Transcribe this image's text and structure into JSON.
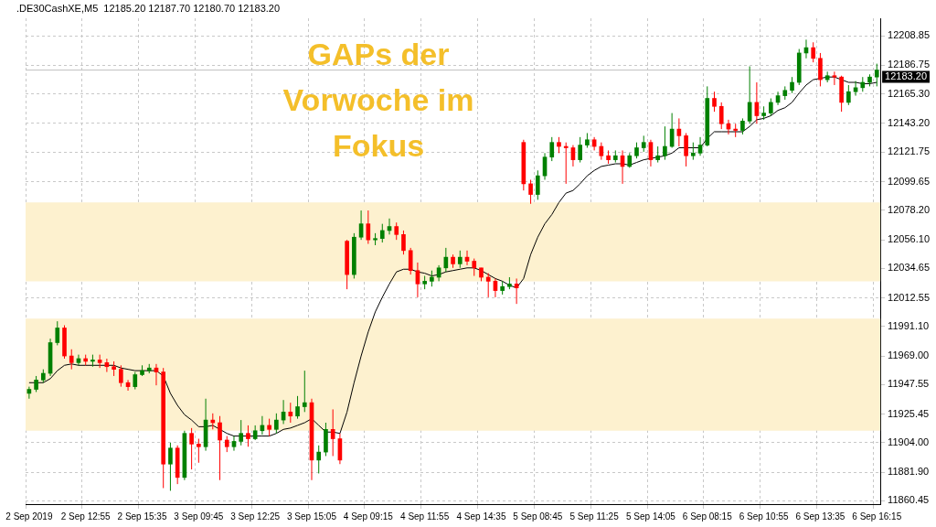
{
  "chart_data": {
    "type": "candlestick",
    "title": "GAPs der Vorwoche im Fokus",
    "subtitle": ".DE30CashXE,M5  12185.20 12187.70 12180.70 12183.20",
    "categories": [
      "2 Sep 2019",
      null,
      null,
      null,
      null,
      null,
      null,
      null,
      "2 Sep 12:55",
      null,
      null,
      null,
      null,
      null,
      null,
      null,
      "2 Sep 15:35",
      null,
      null,
      null,
      null,
      null,
      null,
      null,
      "3 Sep 09:45",
      null,
      null,
      null,
      null,
      null,
      null,
      null,
      "3 Sep 12:25",
      null,
      null,
      null,
      null,
      null,
      null,
      null,
      "3 Sep 15:05",
      null,
      null,
      null,
      null,
      null,
      null,
      null,
      "4 Sep 09:15",
      null,
      null,
      null,
      null,
      null,
      null,
      null,
      "4 Sep 11:55",
      null,
      null,
      null,
      null,
      null,
      null,
      null,
      "4 Sep 14:35",
      null,
      null,
      null,
      null,
      null,
      null,
      null,
      "5 Sep 08:45",
      null,
      null,
      null,
      null,
      null,
      null,
      null,
      "5 Sep 11:25",
      null,
      null,
      null,
      null,
      null,
      null,
      null,
      "5 Sep 14:05",
      null,
      null,
      null,
      null,
      null,
      null,
      null,
      "6 Sep 08:15",
      null,
      null,
      null,
      null,
      null,
      null,
      null,
      "6 Sep 10:55",
      null,
      null,
      null,
      null,
      null,
      null,
      null,
      "6 Sep 13:35",
      null,
      null,
      null,
      null,
      null,
      null,
      null,
      "6 Sep 16:15"
    ],
    "ohlc": [
      [
        11941,
        11946,
        11937,
        11944
      ],
      [
        11944,
        11954,
        11942,
        11951
      ],
      [
        11951,
        11959,
        11949,
        11956
      ],
      [
        11956,
        11982,
        11954,
        11979
      ],
      [
        11979,
        11995,
        11977,
        11990
      ],
      [
        11990,
        11992,
        11967,
        11969
      ],
      [
        11969,
        11974,
        11959,
        11964
      ],
      [
        11964,
        11970,
        11962,
        11967
      ],
      [
        11967,
        11970,
        11962,
        11965
      ],
      [
        11965,
        11970,
        11961,
        11966
      ],
      [
        11966,
        11970,
        11960,
        11964
      ],
      [
        11964,
        11967,
        11957,
        11961
      ],
      [
        11961,
        11965,
        11954,
        11959
      ],
      [
        11959,
        11962,
        11946,
        11949
      ],
      [
        11949,
        11951,
        11943,
        11946
      ],
      [
        11946,
        11957,
        11944,
        11955
      ],
      [
        11955,
        11962,
        11954,
        11958
      ],
      [
        11958,
        11963,
        11956,
        11960
      ],
      [
        11960,
        11963,
        11947,
        11957
      ],
      [
        11957,
        11960,
        11870,
        11888
      ],
      [
        11888,
        11904,
        11868,
        11900
      ],
      [
        11900,
        11902,
        11873,
        11878
      ],
      [
        11878,
        11913,
        11876,
        11911
      ],
      [
        11911,
        11915,
        11884,
        11903
      ],
      [
        11903,
        11907,
        11889,
        11901
      ],
      [
        11901,
        11937,
        11898,
        11921
      ],
      [
        11921,
        11926,
        11914,
        11919
      ],
      [
        11919,
        11924,
        11876,
        11906
      ],
      [
        11906,
        11909,
        11897,
        11901
      ],
      [
        11901,
        11909,
        11898,
        11905
      ],
      [
        11905,
        11921,
        11902,
        11911
      ],
      [
        11911,
        11917,
        11901,
        11907
      ],
      [
        11907,
        11917,
        11906,
        11913
      ],
      [
        11913,
        11924,
        11910,
        11917
      ],
      [
        11917,
        11922,
        11909,
        11914
      ],
      [
        11914,
        11926,
        11911,
        11921
      ],
      [
        11921,
        11936,
        11918,
        11927
      ],
      [
        11927,
        11934,
        11919,
        11924
      ],
      [
        11924,
        11939,
        11922,
        11931
      ],
      [
        11931,
        11958,
        11927,
        11934
      ],
      [
        11934,
        11937,
        11876,
        11891
      ],
      [
        11891,
        11902,
        11881,
        11897
      ],
      [
        11897,
        11919,
        11894,
        11914
      ],
      [
        11914,
        11929,
        11894,
        11907
      ],
      [
        11907,
        11911,
        11888,
        11891
      ],
      [
        12055,
        12056,
        12019,
        12030
      ],
      [
        12030,
        12061,
        12027,
        12058
      ],
      [
        12058,
        12078,
        12056,
        12068
      ],
      [
        12068,
        12078,
        12053,
        12056
      ],
      [
        12056,
        12061,
        12052,
        12057
      ],
      [
        12057,
        12068,
        12054,
        12063
      ],
      [
        12063,
        12072,
        12060,
        12066
      ],
      [
        12066,
        12069,
        12056,
        12060
      ],
      [
        12060,
        12063,
        12045,
        12048
      ],
      [
        12048,
        12050,
        12030,
        12033
      ],
      [
        12033,
        12039,
        12013,
        12023
      ],
      [
        12023,
        12029,
        12019,
        12025
      ],
      [
        12025,
        12033,
        12021,
        12028
      ],
      [
        12028,
        12037,
        12025,
        12035
      ],
      [
        12035,
        12050,
        12032,
        12043
      ],
      [
        12043,
        12045,
        12035,
        12038
      ],
      [
        12038,
        12048,
        12035,
        12043
      ],
      [
        12043,
        12048,
        12037,
        12040
      ],
      [
        12040,
        12042,
        12029,
        12035
      ],
      [
        12035,
        12035,
        12025,
        12028
      ],
      [
        12028,
        12031,
        12013,
        12025
      ],
      [
        12025,
        12027,
        12013,
        12018
      ],
      [
        12018,
        12025,
        12015,
        12021
      ],
      [
        12021,
        12028,
        12019,
        12023
      ],
      [
        12023,
        12027,
        12008,
        12020
      ],
      [
        12129,
        12131,
        12093,
        12098
      ],
      [
        12098,
        12101,
        12083,
        12090
      ],
      [
        12090,
        12108,
        12086,
        12104
      ],
      [
        12104,
        12121,
        12101,
        12118
      ],
      [
        12118,
        12133,
        12115,
        12129
      ],
      [
        12129,
        12133,
        12121,
        12126
      ],
      [
        12126,
        12129,
        12098,
        12125
      ],
      [
        12125,
        12127,
        12111,
        12116
      ],
      [
        12116,
        12133,
        12114,
        12127
      ],
      [
        12127,
        12136,
        12125,
        12131
      ],
      [
        12131,
        12133,
        12123,
        12126
      ],
      [
        12126,
        12129,
        12116,
        12119
      ],
      [
        12119,
        12123,
        12113,
        12116
      ],
      [
        12116,
        12123,
        12114,
        12119
      ],
      [
        12119,
        12123,
        12098,
        12111
      ],
      [
        12111,
        12121,
        12110,
        12119
      ],
      [
        12119,
        12129,
        12117,
        12125
      ],
      [
        12125,
        12134,
        12122,
        12129
      ],
      [
        12129,
        12131,
        12111,
        12116
      ],
      [
        12116,
        12126,
        12114,
        12119
      ],
      [
        12119,
        12141,
        12116,
        12126
      ],
      [
        12126,
        12151,
        12125,
        12139
      ],
      [
        12139,
        12147,
        12126,
        12134
      ],
      [
        12134,
        12136,
        12111,
        12119
      ],
      [
        12119,
        12129,
        12116,
        12121
      ],
      [
        12121,
        12133,
        12119,
        12127
      ],
      [
        12127,
        12171,
        12126,
        12162
      ],
      [
        12162,
        12167,
        12152,
        12156
      ],
      [
        12156,
        12159,
        12139,
        12143
      ],
      [
        12143,
        12146,
        12135,
        12139
      ],
      [
        12139,
        12143,
        12133,
        12138
      ],
      [
        12138,
        12147,
        12135,
        12145
      ],
      [
        12145,
        12186,
        12143,
        12159
      ],
      [
        12159,
        12174,
        12143,
        12149
      ],
      [
        12149,
        12156,
        12146,
        12151
      ],
      [
        12151,
        12162,
        12149,
        12159
      ],
      [
        12159,
        12167,
        12157,
        12164
      ],
      [
        12164,
        12171,
        12161,
        12168
      ],
      [
        12168,
        12178,
        12166,
        12174
      ],
      [
        12174,
        12199,
        12172,
        12196
      ],
      [
        12196,
        12206,
        12192,
        12200
      ],
      [
        12200,
        12204,
        12189,
        12192
      ],
      [
        12192,
        12196,
        12171,
        12176
      ],
      [
        12176,
        12182,
        12174,
        12179
      ],
      [
        12179,
        12182,
        12172,
        12178
      ],
      [
        12178,
        12179,
        12152,
        12159
      ],
      [
        12159,
        12172,
        12157,
        12167
      ],
      [
        12167,
        12175,
        12164,
        12170
      ],
      [
        12170,
        12178,
        12167,
        12174
      ],
      [
        12174,
        12180,
        12171,
        12178
      ],
      [
        12178,
        12188,
        12171,
        12183.2
      ]
    ],
    "series": [
      {
        "type": "line",
        "color": "#000000",
        "values": [
          11949,
          11949,
          11949,
          11952,
          11958,
          11962,
          11963,
          11962,
          11962,
          11962,
          11962,
          11962,
          11962,
          11960,
          11959,
          11958,
          11958,
          11958,
          11958,
          11954,
          11941,
          11932,
          11925,
          11921,
          11916,
          11916,
          11917,
          11914,
          11911,
          11909,
          11909,
          11909,
          11909,
          11909,
          11909,
          11911,
          11914,
          11915,
          11917,
          11919,
          11922,
          11917,
          11912,
          11912,
          11911,
          11927,
          11949,
          11969,
          11987,
          12002,
          12013,
          12023,
          12032,
          12034,
          12034,
          12032,
          12031,
          12029,
          12030,
          12032,
          12033,
          12034,
          12035,
          12035,
          12033,
          12030,
          12027,
          12025,
          12022,
          12020,
          12027,
          12045,
          12058,
          12068,
          12075,
          12084,
          12091,
          12093,
          12098,
          12104,
          12108,
          12111,
          12112,
          12113,
          12113,
          12112,
          12114,
          12116,
          12117,
          12118,
          12119,
          12121,
          12125,
          12125,
          12125,
          12125,
          12132,
          12137,
          12137,
          12137,
          12137,
          12137,
          12141,
          12146,
          12147,
          12149,
          12153,
          12155,
          12159,
          12166,
          12172,
          12176,
          12177,
          12178,
          12178,
          12176,
          12174,
          12174,
          12173,
          12173,
          12174
        ]
      }
    ],
    "ylim": [
      11858,
      12222
    ],
    "yticks": [
      {
        "value": 11860.45,
        "label": "11860.45"
      },
      {
        "value": 11881.9,
        "label": "11881.90"
      },
      {
        "value": 11904,
        "label": "11904.00"
      },
      {
        "value": 11925.45,
        "label": "11925.45"
      },
      {
        "value": 11947.55,
        "label": "11947.55"
      },
      {
        "value": 11969,
        "label": "11969.00"
      },
      {
        "value": 11991.1,
        "label": "11991.10"
      },
      {
        "value": 12012.55,
        "label": "12012.55"
      },
      {
        "value": 12034.65,
        "label": "12034.65"
      },
      {
        "value": 12056.1,
        "label": "12056.10"
      },
      {
        "value": 12078.2,
        "label": "12078.20"
      },
      {
        "value": 12099.65,
        "label": "12099.65"
      },
      {
        "value": 12121.75,
        "label": "12121.75"
      },
      {
        "value": 12143.2,
        "label": "12143.20"
      },
      {
        "value": 12165.3,
        "label": "12165.30"
      },
      {
        "value": 12186.75,
        "label": "12186.75"
      },
      {
        "value": 12208.85,
        "label": "12208.85"
      }
    ],
    "bands": [
      {
        "axis": "y",
        "from": 12025,
        "to": 12084,
        "color": "#fdf1cf"
      },
      {
        "axis": "y",
        "from": 11913,
        "to": 11997,
        "color": "#fdf1cf"
      }
    ],
    "ref_lines": [
      {
        "axis": "y",
        "value": 12183.2,
        "label": "12183.20",
        "color": "#c0c0c0"
      }
    ],
    "grid": true,
    "legend": false
  }
}
